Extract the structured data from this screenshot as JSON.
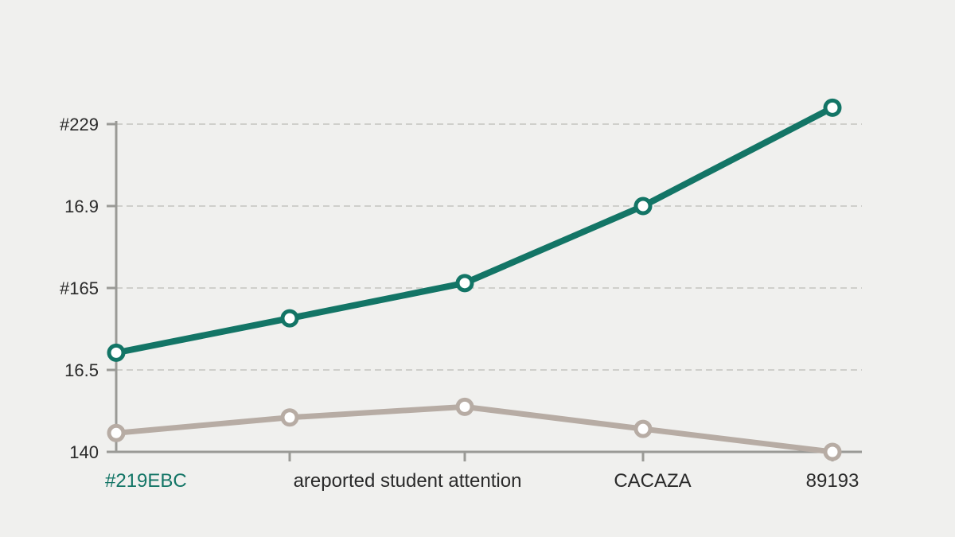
{
  "chart_data": {
    "type": "line",
    "title": "",
    "xlabel": "",
    "ylabel": "",
    "categories": [
      "#219EBC",
      "areported student attention",
      "",
      "CACAZA",
      "89193"
    ],
    "y_tick_labels": [
      "140",
      "16.5",
      "#165",
      "16.9",
      "#229"
    ],
    "y_tick_values": [
      0,
      1,
      2,
      3,
      4
    ],
    "ylim": [
      0,
      4.1
    ],
    "grid": true,
    "series": [
      {
        "color": "#137566",
        "values": [
          1.21,
          1.63,
          2.06,
          3.0,
          4.2
        ]
      },
      {
        "color": "#b7aca4",
        "values": [
          0.23,
          0.42,
          0.55,
          0.28,
          0.0
        ]
      }
    ],
    "first_category_color": "#137566"
  }
}
